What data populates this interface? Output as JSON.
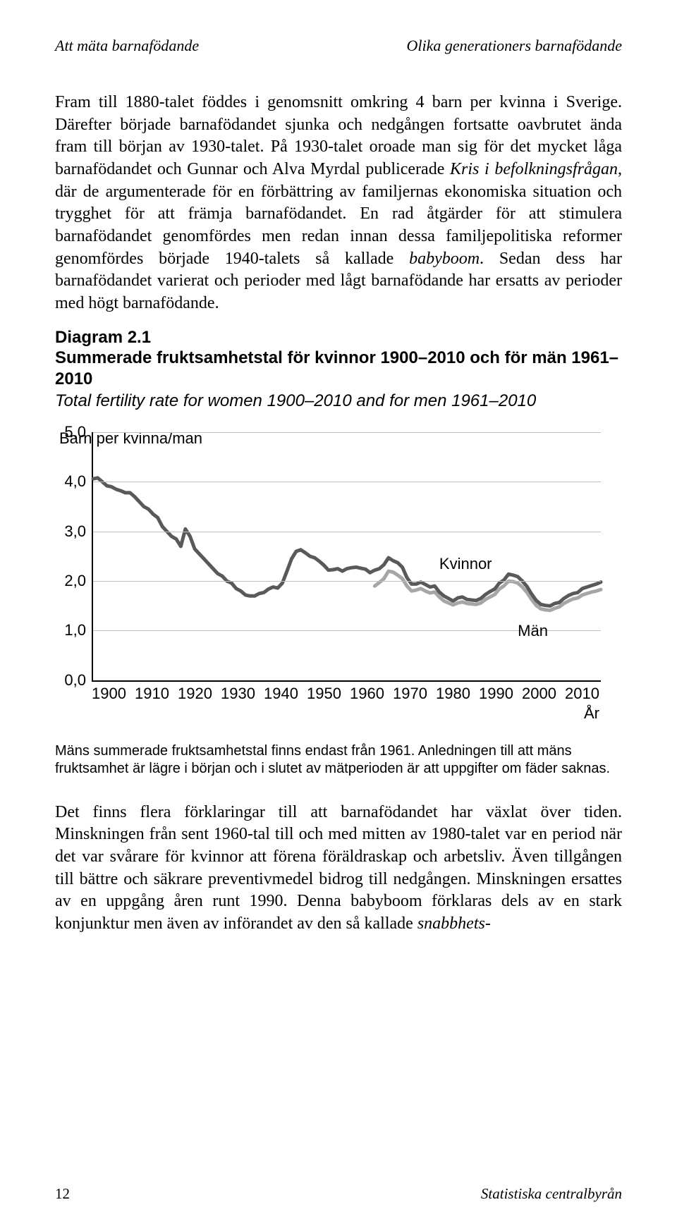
{
  "running_head": {
    "left": "Att mäta barnafödande",
    "right": "Olika generationers barnafödande"
  },
  "para1_html": "Fram till 1880-talet föddes i genomsnitt omkring 4 barn per kvinna i Sverige. Därefter började barnafödandet sjunka och nedgången fortsatte oavbrutet ända fram till början av 1930-talet. På 1930-talet oroade man sig för det mycket låga barnafödandet och Gunnar och Alva Myrdal publicerade <em>Kris i befolkningsfrågan</em>, där de argumenterade för en förbättring av familjernas ekonomiska situation och trygghet för att främja barnafödandet. En rad åtgärder för att stimulera barnafödandet genomfördes men redan innan dessa familjepolitiska reformer genomfördes började 1940-talets så kallade <em>babyboom</em>. Sedan dess har barnafödandet varierat och perioder med lågt barnafödande har ersatts av perioder med högt barnafödande.",
  "diagram": {
    "title": "Diagram 2.1",
    "subtitle": "Summerade fruktsamhetstal för kvinnor 1900–2010 och för män 1961–2010",
    "subtitle_it": "Total fertility rate for women 1900–2010 and for men 1961–2010"
  },
  "chart": {
    "type": "line",
    "y_title": "Barn per kvinna/man",
    "x_title": "År",
    "ylim": [
      0,
      5
    ],
    "xlim": [
      1900,
      2010
    ],
    "yticks": [
      "0,0",
      "1,0",
      "2,0",
      "3,0",
      "4,0",
      "5,0"
    ],
    "xticks": [
      "1900",
      "1910",
      "1920",
      "1930",
      "1940",
      "1950",
      "1960",
      "1970",
      "1980",
      "1990",
      "2000",
      "2010"
    ],
    "grid_color": "#bfbfbf",
    "background_color": "#ffffff",
    "line_width": 5,
    "series": [
      {
        "name": "Kvinnor",
        "label": "Kvinnor",
        "color": "#595959",
        "label_x": 1975,
        "label_y": 2.35,
        "data": [
          [
            1900,
            4.06
          ],
          [
            1901,
            4.08
          ],
          [
            1902,
            4.0
          ],
          [
            1903,
            3.92
          ],
          [
            1904,
            3.9
          ],
          [
            1905,
            3.85
          ],
          [
            1906,
            3.82
          ],
          [
            1907,
            3.78
          ],
          [
            1908,
            3.78
          ],
          [
            1909,
            3.7
          ],
          [
            1910,
            3.6
          ],
          [
            1911,
            3.5
          ],
          [
            1912,
            3.45
          ],
          [
            1913,
            3.35
          ],
          [
            1914,
            3.28
          ],
          [
            1915,
            3.1
          ],
          [
            1916,
            3.0
          ],
          [
            1917,
            2.9
          ],
          [
            1918,
            2.85
          ],
          [
            1919,
            2.7
          ],
          [
            1920,
            3.05
          ],
          [
            1921,
            2.9
          ],
          [
            1922,
            2.65
          ],
          [
            1923,
            2.55
          ],
          [
            1924,
            2.45
          ],
          [
            1925,
            2.35
          ],
          [
            1926,
            2.25
          ],
          [
            1927,
            2.15
          ],
          [
            1928,
            2.1
          ],
          [
            1929,
            2.0
          ],
          [
            1930,
            1.96
          ],
          [
            1931,
            1.85
          ],
          [
            1932,
            1.8
          ],
          [
            1933,
            1.72
          ],
          [
            1934,
            1.7
          ],
          [
            1935,
            1.7
          ],
          [
            1936,
            1.75
          ],
          [
            1937,
            1.77
          ],
          [
            1938,
            1.84
          ],
          [
            1939,
            1.88
          ],
          [
            1940,
            1.86
          ],
          [
            1941,
            1.96
          ],
          [
            1942,
            2.2
          ],
          [
            1943,
            2.45
          ],
          [
            1944,
            2.6
          ],
          [
            1945,
            2.63
          ],
          [
            1946,
            2.57
          ],
          [
            1947,
            2.5
          ],
          [
            1948,
            2.47
          ],
          [
            1949,
            2.4
          ],
          [
            1950,
            2.32
          ],
          [
            1951,
            2.22
          ],
          [
            1952,
            2.23
          ],
          [
            1953,
            2.25
          ],
          [
            1954,
            2.2
          ],
          [
            1955,
            2.25
          ],
          [
            1956,
            2.27
          ],
          [
            1957,
            2.28
          ],
          [
            1958,
            2.26
          ],
          [
            1959,
            2.24
          ],
          [
            1960,
            2.17
          ],
          [
            1961,
            2.22
          ],
          [
            1962,
            2.25
          ],
          [
            1963,
            2.33
          ],
          [
            1964,
            2.47
          ],
          [
            1965,
            2.41
          ],
          [
            1966,
            2.37
          ],
          [
            1967,
            2.28
          ],
          [
            1968,
            2.07
          ],
          [
            1969,
            1.94
          ],
          [
            1970,
            1.94
          ],
          [
            1971,
            1.98
          ],
          [
            1972,
            1.93
          ],
          [
            1973,
            1.88
          ],
          [
            1974,
            1.9
          ],
          [
            1975,
            1.78
          ],
          [
            1976,
            1.7
          ],
          [
            1977,
            1.65
          ],
          [
            1978,
            1.6
          ],
          [
            1979,
            1.66
          ],
          [
            1980,
            1.68
          ],
          [
            1981,
            1.63
          ],
          [
            1982,
            1.62
          ],
          [
            1983,
            1.61
          ],
          [
            1984,
            1.65
          ],
          [
            1985,
            1.73
          ],
          [
            1986,
            1.79
          ],
          [
            1987,
            1.84
          ],
          [
            1988,
            1.96
          ],
          [
            1989,
            2.02
          ],
          [
            1990,
            2.14
          ],
          [
            1991,
            2.12
          ],
          [
            1992,
            2.09
          ],
          [
            1993,
            2.0
          ],
          [
            1994,
            1.89
          ],
          [
            1995,
            1.74
          ],
          [
            1996,
            1.61
          ],
          [
            1997,
            1.53
          ],
          [
            1998,
            1.51
          ],
          [
            1999,
            1.5
          ],
          [
            2000,
            1.55
          ],
          [
            2001,
            1.57
          ],
          [
            2002,
            1.65
          ],
          [
            2003,
            1.71
          ],
          [
            2004,
            1.75
          ],
          [
            2005,
            1.77
          ],
          [
            2006,
            1.85
          ],
          [
            2007,
            1.88
          ],
          [
            2008,
            1.91
          ],
          [
            2009,
            1.94
          ],
          [
            2010,
            1.98
          ]
        ]
      },
      {
        "name": "Män",
        "label": "Män",
        "color": "#a6a6a6",
        "label_x": 1992,
        "label_y": 1.0,
        "data": [
          [
            1961,
            1.9
          ],
          [
            1962,
            1.97
          ],
          [
            1963,
            2.05
          ],
          [
            1964,
            2.2
          ],
          [
            1965,
            2.18
          ],
          [
            1966,
            2.12
          ],
          [
            1967,
            2.05
          ],
          [
            1968,
            1.9
          ],
          [
            1969,
            1.8
          ],
          [
            1970,
            1.82
          ],
          [
            1971,
            1.85
          ],
          [
            1972,
            1.8
          ],
          [
            1973,
            1.76
          ],
          [
            1974,
            1.78
          ],
          [
            1975,
            1.68
          ],
          [
            1976,
            1.6
          ],
          [
            1977,
            1.56
          ],
          [
            1978,
            1.52
          ],
          [
            1979,
            1.56
          ],
          [
            1980,
            1.58
          ],
          [
            1981,
            1.55
          ],
          [
            1982,
            1.54
          ],
          [
            1983,
            1.53
          ],
          [
            1984,
            1.56
          ],
          [
            1985,
            1.63
          ],
          [
            1986,
            1.68
          ],
          [
            1987,
            1.73
          ],
          [
            1988,
            1.84
          ],
          [
            1989,
            1.9
          ],
          [
            1990,
            2.0
          ],
          [
            1991,
            1.99
          ],
          [
            1992,
            1.96
          ],
          [
            1993,
            1.88
          ],
          [
            1994,
            1.77
          ],
          [
            1995,
            1.63
          ],
          [
            1996,
            1.51
          ],
          [
            1997,
            1.44
          ],
          [
            1998,
            1.42
          ],
          [
            1999,
            1.41
          ],
          [
            2000,
            1.45
          ],
          [
            2001,
            1.48
          ],
          [
            2002,
            1.55
          ],
          [
            2003,
            1.6
          ],
          [
            2004,
            1.64
          ],
          [
            2005,
            1.66
          ],
          [
            2006,
            1.72
          ],
          [
            2007,
            1.75
          ],
          [
            2008,
            1.78
          ],
          [
            2009,
            1.8
          ],
          [
            2010,
            1.83
          ]
        ]
      }
    ]
  },
  "chart_note": "Mäns summerade fruktsamhetstal finns endast från 1961. Anledningen till att mäns fruktsamhet är lägre i början och i slutet av mätperioden är att uppgifter om fäder saknas.",
  "para2_html": "Det finns flera förklaringar till att barnafödandet har växlat över tiden. Minskningen från sent 1960-tal till och med mitten av 1980-talet var en period när det var svårare för kvinnor att förena föräldraskap och arbetsliv. Även tillgången till bättre och säkrare preventivmedel bidrog till nedgången. Minskningen ersattes av en uppgång åren runt 1990. Denna babyboom förklaras dels av en stark konjunktur men även av införandet av den så kallade <em>snabbhets-</em>",
  "footer": {
    "page": "12",
    "source": "Statistiska centralbyrån"
  }
}
